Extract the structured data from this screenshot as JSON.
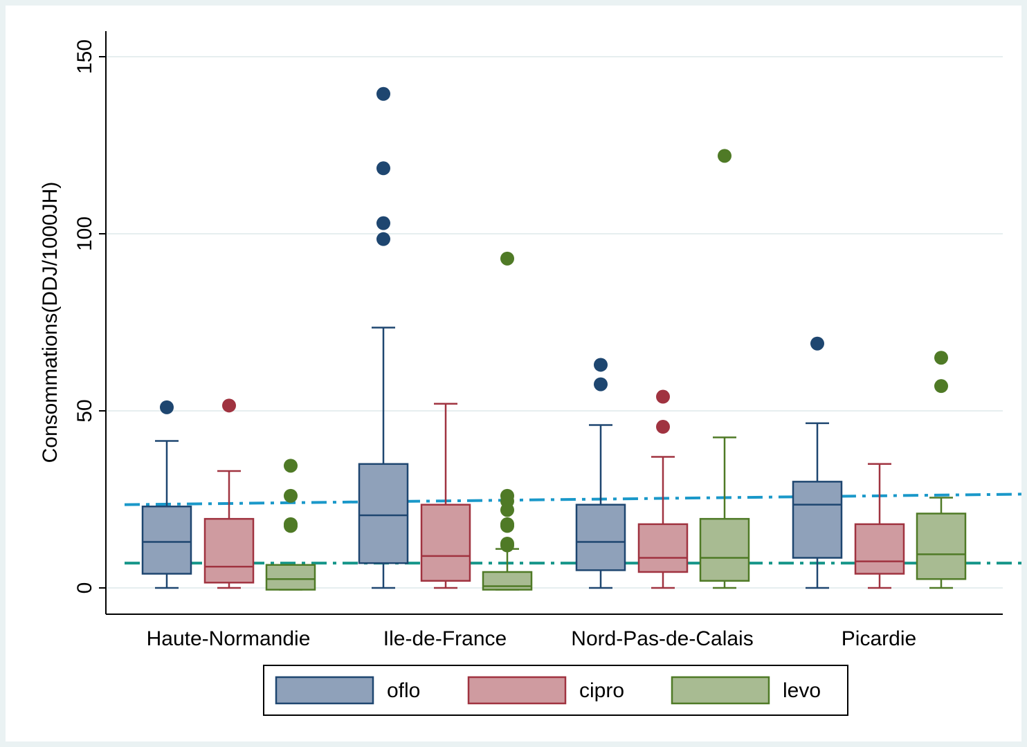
{
  "chart_data": {
    "type": "boxplot",
    "title": "",
    "ylabel": "Consommations(DDJ/1000JH)",
    "xlabel": "",
    "ylim": [
      -7.5,
      157.5
    ],
    "yticks": [
      0,
      50,
      100,
      150
    ],
    "grid": true,
    "legend_position": "bottom",
    "categories": [
      "Haute-Normandie",
      "Ile-de-France",
      "Nord-Pas-de-Calais",
      "Picardie"
    ],
    "series": [
      {
        "name": "oflo",
        "fill": "#8fa1ba",
        "stroke": "#1e4670",
        "boxes": [
          {
            "whisker_low": 0,
            "q1": 4,
            "median": 13,
            "q3": 23,
            "whisker_high": 41.5,
            "outliers": [
              51
            ]
          },
          {
            "whisker_low": 0,
            "q1": 7,
            "median": 20.5,
            "q3": 35,
            "whisker_high": 73.5,
            "outliers": [
              139.5,
              118.5,
              103,
              98.5
            ]
          },
          {
            "whisker_low": 0,
            "q1": 5,
            "median": 13,
            "q3": 23.5,
            "whisker_high": 46,
            "outliers": [
              63,
              57.5
            ]
          },
          {
            "whisker_low": 0,
            "q1": 8.5,
            "median": 23.5,
            "q3": 30,
            "whisker_high": 46.5,
            "outliers": [
              69
            ]
          }
        ]
      },
      {
        "name": "cipro",
        "fill": "#cf9ba0",
        "stroke": "#a03340",
        "boxes": [
          {
            "whisker_low": 0,
            "q1": 1.5,
            "median": 6,
            "q3": 19.5,
            "whisker_high": 33,
            "outliers": [
              51.5
            ]
          },
          {
            "whisker_low": 0,
            "q1": 2,
            "median": 9,
            "q3": 23.5,
            "whisker_high": 52,
            "outliers": []
          },
          {
            "whisker_low": 0,
            "q1": 4.5,
            "median": 8.5,
            "q3": 18,
            "whisker_high": 37,
            "outliers": [
              54,
              45.5
            ]
          },
          {
            "whisker_low": 0,
            "q1": 4,
            "median": 7.5,
            "q3": 18,
            "whisker_high": 35,
            "outliers": []
          }
        ]
      },
      {
        "name": "levo",
        "fill": "#a8bb92",
        "stroke": "#4f7a26",
        "boxes": [
          {
            "whisker_low": -0.5,
            "q1": -0.5,
            "median": 2.5,
            "q3": 6.5,
            "whisker_high": 6.5,
            "outliers": [
              34.5,
              26,
              18,
              17.5
            ]
          },
          {
            "whisker_low": -0.5,
            "q1": -0.5,
            "median": 0.5,
            "q3": 4.5,
            "whisker_high": 11,
            "outliers": [
              93,
              26,
              24.5,
              22,
              18,
              17.5,
              12,
              12.5
            ]
          },
          {
            "whisker_low": 0,
            "q1": 2,
            "median": 8.5,
            "q3": 19.5,
            "whisker_high": 42.5,
            "outliers": [
              122
            ]
          },
          {
            "whisker_low": 0,
            "q1": 2.5,
            "median": 9.5,
            "q3": 21,
            "whisker_high": 25.5,
            "outliers": [
              65,
              57
            ]
          }
        ]
      }
    ],
    "reference_lines": [
      {
        "color": "#1a98c9",
        "y_start": 23.5,
        "y_end": 26.5,
        "style": "dash-dot"
      },
      {
        "color": "#17968a",
        "y_start": 7,
        "y_end": 7,
        "style": "dash-dot"
      }
    ]
  }
}
